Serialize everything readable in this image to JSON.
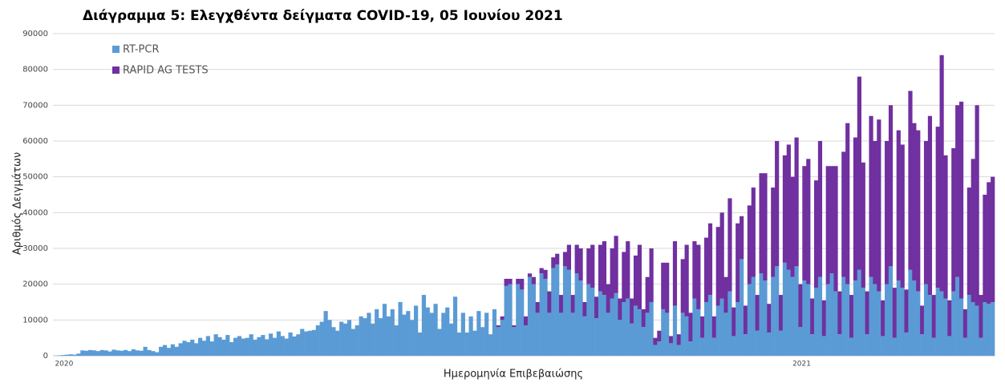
{
  "chart_data": {
    "type": "stacked_bar",
    "title": "Διάγραμμα 5: Ελεγχθέντα δείγματα COVID-19, 05 Ιουνίου 2021",
    "x_label": "Ημερομηνία Επιβεβαιώσης",
    "y_label": "Αριθμός Δειγμάτων",
    "ylim": [
      0,
      90000
    ],
    "yticks": [
      0,
      10000,
      20000,
      30000,
      40000,
      50000,
      60000,
      70000,
      80000,
      90000
    ],
    "grid": true,
    "legend": "top-left",
    "categories": [
      "2020",
      null,
      null,
      null,
      null,
      null,
      null,
      null,
      null,
      null,
      null,
      null,
      null,
      null,
      null,
      null,
      null,
      null,
      null,
      null,
      null,
      null,
      null,
      null,
      null,
      null,
      null,
      null,
      null,
      null,
      null,
      null,
      null,
      null,
      null,
      null,
      null,
      null,
      null,
      null,
      null,
      null,
      null,
      null,
      null,
      null,
      null,
      null,
      null,
      null,
      null,
      null,
      null,
      null,
      null,
      null,
      null,
      null,
      null,
      null,
      null,
      null,
      null,
      null,
      null,
      null,
      null,
      null,
      null,
      null,
      null,
      null,
      null,
      null,
      null,
      null,
      null,
      null,
      null,
      null,
      null,
      null,
      null,
      null,
      null,
      null,
      null,
      null,
      null,
      null,
      null,
      null,
      null,
      null,
      null,
      null,
      null,
      null,
      null,
      null,
      null,
      null,
      null,
      null,
      null,
      null,
      null,
      null,
      null,
      null,
      null,
      null,
      null,
      null,
      null,
      null,
      null,
      null,
      null,
      null,
      null,
      null,
      null,
      null,
      null,
      null,
      null,
      null,
      null,
      null,
      null,
      null,
      null,
      null,
      null,
      null,
      null,
      null,
      null,
      null,
      null,
      null,
      null,
      null,
      null,
      null,
      null,
      null,
      null,
      null,
      null,
      null,
      null,
      null,
      null,
      null,
      null,
      null,
      null,
      null,
      null,
      null,
      null,
      null,
      null,
      null,
      null,
      null,
      null,
      null,
      null,
      null,
      null,
      null,
      null,
      null,
      null,
      null,
      null,
      null,
      null,
      null,
      null,
      null,
      null,
      null,
      null,
      null,
      "2021",
      null,
      null,
      null,
      null,
      null,
      null,
      null,
      null,
      null,
      null,
      null,
      null,
      null,
      null,
      null,
      null,
      null,
      null,
      null,
      null,
      null,
      null,
      null,
      null,
      null,
      null,
      null,
      null,
      null,
      null,
      null,
      null,
      null,
      null,
      null,
      null,
      null,
      null,
      null,
      null,
      null,
      null,
      null,
      null,
      null,
      null,
      null,
      null,
      null,
      null,
      null
    ],
    "series": [
      {
        "name": "RT-PCR",
        "color": "#5b9bd5",
        "values": [
          0,
          100,
          200,
          300,
          400,
          300,
          600,
          1500,
          1400,
          1600,
          1500,
          1300,
          1600,
          1500,
          1200,
          1700,
          1500,
          1400,
          1600,
          1300,
          1800,
          1500,
          1400,
          2500,
          1600,
          1300,
          1000,
          2500,
          3000,
          2200,
          3200,
          2500,
          3500,
          4200,
          3800,
          4500,
          3500,
          5000,
          4200,
          5500,
          4000,
          6000,
          5200,
          4500,
          5800,
          3800,
          5000,
          5500,
          4800,
          5000,
          6000,
          4500,
          5200,
          5800,
          4600,
          6200,
          5000,
          6800,
          5500,
          4800,
          6500,
          5400,
          6000,
          7500,
          6800,
          7000,
          7200,
          8500,
          9500,
          12500,
          10000,
          8000,
          7000,
          9500,
          9000,
          10000,
          7500,
          8500,
          11000,
          10500,
          12000,
          9000,
          13000,
          10500,
          14500,
          11000,
          13000,
          8500,
          15000,
          11500,
          12500,
          10000,
          14000,
          6500,
          17000,
          13500,
          12000,
          14500,
          7500,
          12000,
          13500,
          9000,
          16500,
          6500,
          12000,
          6500,
          11000,
          7000,
          12500,
          8000,
          12000,
          6000,
          13000,
          8000,
          10000,
          19500,
          20000,
          8000,
          20000,
          18500,
          8500,
          22000,
          20000,
          12000,
          23000,
          21500,
          12000,
          24500,
          25500,
          12000,
          25000,
          24000,
          12000,
          23000,
          21000,
          11000,
          20000,
          19000,
          10500,
          18000,
          17000,
          12000,
          16000,
          17500,
          10000,
          15000,
          16000,
          9000,
          14000,
          13000,
          8000,
          12000,
          15000,
          3000,
          4000,
          13000,
          12000,
          3500,
          14000,
          3000,
          12000,
          11000,
          4000,
          16000,
          13000,
          5000,
          15000,
          17000,
          5000,
          14000,
          16000,
          12000,
          18000,
          5500,
          15000,
          27000,
          6000,
          20000,
          22000,
          7000,
          23000,
          21000,
          6500,
          22000,
          25000,
          7000,
          26000,
          24000,
          22000,
          25000,
          8000,
          21000,
          20000,
          6000,
          19000,
          22000,
          5500,
          20000,
          23000,
          18000,
          6000,
          22000,
          20000,
          5000,
          21000,
          24000,
          19000,
          6000,
          22000,
          20000,
          18000,
          5500,
          20000,
          25000,
          5000,
          21000,
          19000,
          6500,
          24000,
          21000,
          18000,
          6000,
          20000,
          17000,
          5000,
          19000,
          18000,
          16000,
          5500,
          18000,
          22000,
          16000,
          5000,
          17000,
          15000,
          14000,
          5000,
          15000,
          14500,
          15000
        ]
      },
      {
        "name": "RAPID AG TESTS",
        "color": "#7030a0",
        "values": [
          0,
          0,
          0,
          0,
          0,
          0,
          0,
          0,
          0,
          0,
          0,
          0,
          0,
          0,
          0,
          0,
          0,
          0,
          0,
          0,
          0,
          0,
          0,
          0,
          0,
          0,
          0,
          0,
          0,
          0,
          0,
          0,
          0,
          0,
          0,
          0,
          0,
          0,
          0,
          0,
          0,
          0,
          0,
          0,
          0,
          0,
          0,
          0,
          0,
          0,
          0,
          0,
          0,
          0,
          0,
          0,
          0,
          0,
          0,
          0,
          0,
          0,
          0,
          0,
          0,
          0,
          0,
          0,
          0,
          0,
          0,
          0,
          0,
          0,
          0,
          0,
          0,
          0,
          0,
          0,
          0,
          0,
          0,
          0,
          0,
          0,
          0,
          0,
          0,
          0,
          0,
          0,
          0,
          0,
          0,
          0,
          0,
          0,
          0,
          0,
          0,
          0,
          0,
          0,
          0,
          0,
          0,
          0,
          0,
          0,
          0,
          0,
          0,
          500,
          1000,
          2000,
          1500,
          500,
          1500,
          3000,
          2500,
          1000,
          2000,
          3000,
          1500,
          2500,
          6000,
          3000,
          3000,
          5000,
          4000,
          7000,
          5000,
          8000,
          9000,
          4000,
          10000,
          12000,
          6000,
          13000,
          15000,
          8000,
          14000,
          16000,
          6000,
          14000,
          16000,
          7000,
          14000,
          18000,
          5000,
          10000,
          15000,
          2000,
          3000,
          13000,
          14000,
          2000,
          18000,
          3000,
          15000,
          20000,
          8000,
          16000,
          18000,
          6000,
          18000,
          20000,
          6000,
          22000,
          24000,
          10000,
          26000,
          8000,
          22000,
          12000,
          8000,
          22000,
          25000,
          10000,
          28000,
          30000,
          8000,
          25000,
          35000,
          10000,
          30000,
          35000,
          28000,
          36000,
          12000,
          32000,
          35000,
          10000,
          30000,
          38000,
          10000,
          33000,
          30000,
          35000,
          12000,
          35000,
          45000,
          12000,
          40000,
          54000,
          35000,
          12000,
          45000,
          40000,
          48000,
          10000,
          40000,
          45000,
          14000,
          42000,
          40000,
          12000,
          50000,
          44000,
          45000,
          8000,
          40000,
          50000,
          12000,
          45000,
          66000,
          40000,
          10000,
          40000,
          48000,
          55000,
          8000,
          30000,
          40000,
          56000,
          12000,
          30000,
          34000,
          35000
        ]
      }
    ]
  }
}
